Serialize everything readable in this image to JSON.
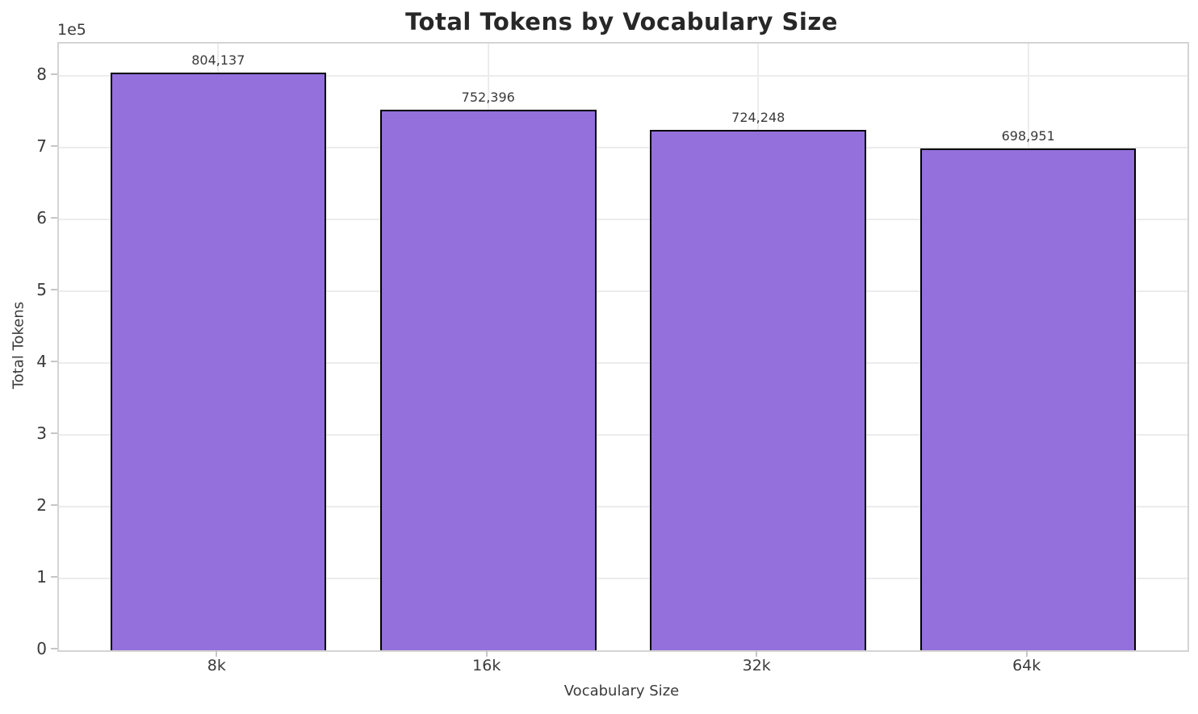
{
  "chart_data": {
    "type": "bar",
    "title": "Total Tokens by Vocabulary Size",
    "xlabel": "Vocabulary Size",
    "ylabel": "Total Tokens",
    "offset_text": "1e5",
    "categories": [
      "8k",
      "16k",
      "32k",
      "64k"
    ],
    "values": [
      804137,
      752396,
      724248,
      698951
    ],
    "value_labels": [
      "804,137",
      "752,396",
      "724,248",
      "698,951"
    ],
    "yticks": [
      0,
      1,
      2,
      3,
      4,
      5,
      6,
      7,
      8
    ],
    "ytick_unit": 100000,
    "ylim": [
      0,
      845000
    ],
    "grid": true,
    "legend": false,
    "bar_color": "#9370DB",
    "bar_edge_color": "#000000",
    "grid_color": "#ececec",
    "spine_color": "#d4d4d4"
  }
}
